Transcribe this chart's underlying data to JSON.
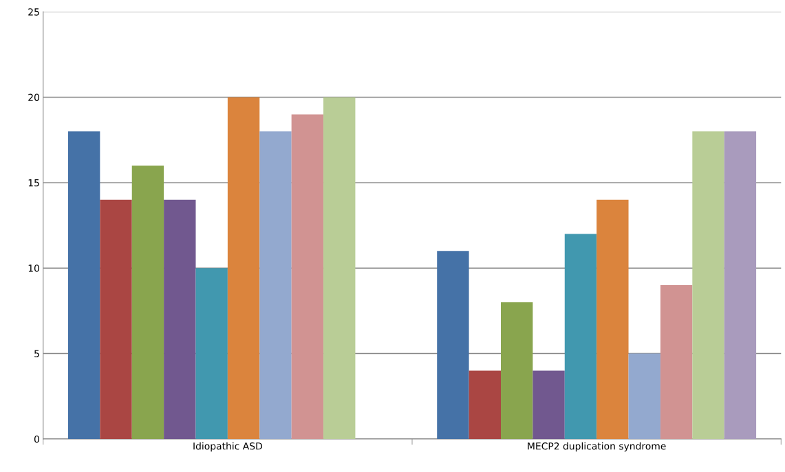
{
  "chart_data": {
    "type": "bar",
    "categories": [
      "Idiopathic ASD",
      "MECP2 duplication syndrome"
    ],
    "series": [
      {
        "color": "#4572a7",
        "values": [
          18,
          11
        ]
      },
      {
        "color": "#aa4643",
        "values": [
          14,
          4
        ]
      },
      {
        "color": "#89a54e",
        "values": [
          16,
          8
        ]
      },
      {
        "color": "#71588f",
        "values": [
          14,
          4
        ]
      },
      {
        "color": "#4198af",
        "values": [
          10,
          12
        ]
      },
      {
        "color": "#db843d",
        "values": [
          20,
          14
        ]
      },
      {
        "color": "#93a9cf",
        "values": [
          18,
          5
        ]
      },
      {
        "color": "#d19392",
        "values": [
          19,
          9
        ]
      },
      {
        "color": "#b9cd96",
        "values": [
          20,
          18
        ]
      },
      {
        "color": "#a99bbd",
        "values": [
          null,
          18
        ]
      }
    ],
    "ylim": [
      0,
      25
    ],
    "yticks": [
      0,
      5,
      10,
      15,
      20,
      25
    ],
    "grid": "y",
    "legend": false
  }
}
